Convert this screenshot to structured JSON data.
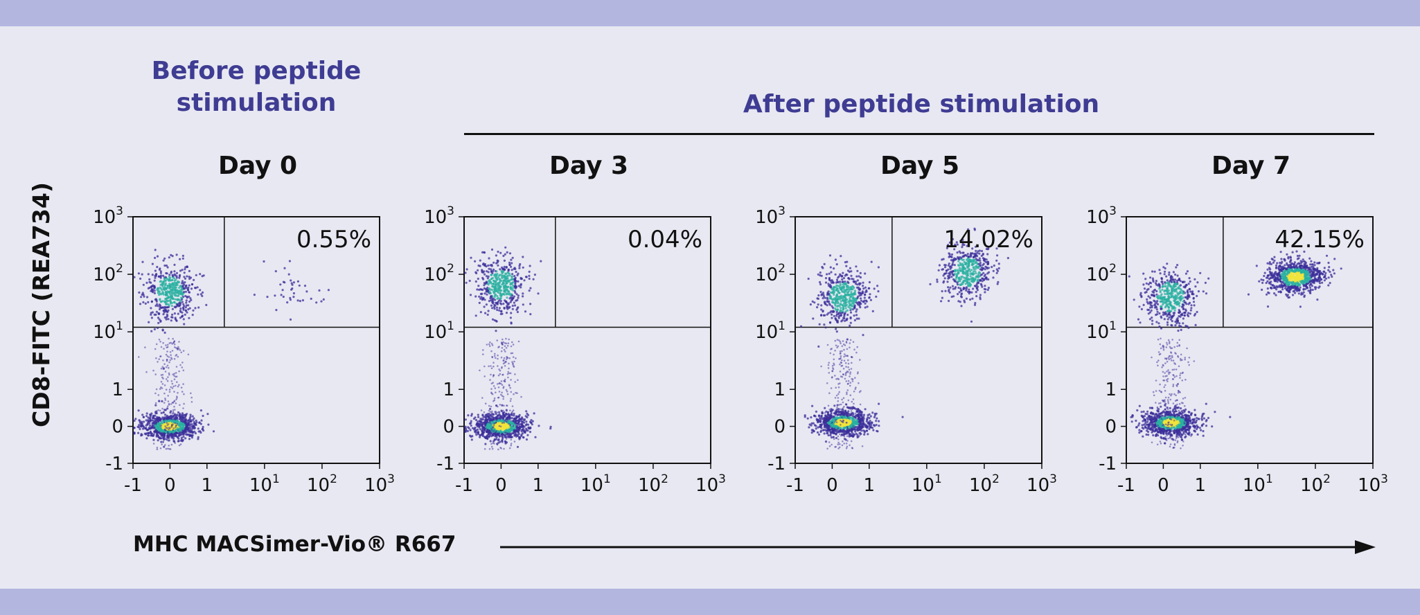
{
  "headers": {
    "before": "Before peptide stimulation",
    "after": "After peptide stimulation"
  },
  "y_axis_label": "CD8-FITC (REA734)",
  "x_axis_label": "MHC MACSimer-Vio® R667",
  "colors": {
    "band": "#b3b6df",
    "background": "#e8e8f2",
    "header": "#3f3c93",
    "density_low": "#3b2d9a",
    "density_mid": "#2ab0a0",
    "density_high": "#f2e43a"
  },
  "chart_data": [
    {
      "type": "scatter",
      "title": "Day 0",
      "x_ticks": [
        "-1",
        "0",
        "1",
        "10^1",
        "10^2",
        "10^3"
      ],
      "y_ticks": [
        "-1",
        "0",
        "1",
        "10^1",
        "10^2",
        "10^3"
      ],
      "xlim": [
        -1,
        1000
      ],
      "ylim": [
        -1,
        1000
      ],
      "scale": "biexponential",
      "gate": {
        "x": 2,
        "y": 12
      },
      "gate_percent": "0.55%",
      "populations": [
        {
          "x": 0,
          "y": 0,
          "density": "high"
        },
        {
          "x": 0,
          "y": 50,
          "density": "mid"
        },
        {
          "x": 30,
          "y": 50,
          "density": "sparse"
        }
      ]
    },
    {
      "type": "scatter",
      "title": "Day 3",
      "x_ticks": [
        "-1",
        "0",
        "1",
        "10^1",
        "10^2",
        "10^3"
      ],
      "y_ticks": [
        "-1",
        "0",
        "1",
        "10^1",
        "10^2",
        "10^3"
      ],
      "xlim": [
        -1,
        1000
      ],
      "ylim": [
        -1,
        1000
      ],
      "scale": "biexponential",
      "gate": {
        "x": 2,
        "y": 12
      },
      "gate_percent": "0.04%",
      "populations": [
        {
          "x": 0,
          "y": 0,
          "density": "high"
        },
        {
          "x": 0,
          "y": 65,
          "density": "mid"
        }
      ]
    },
    {
      "type": "scatter",
      "title": "Day 5",
      "x_ticks": [
        "-1",
        "0",
        "1",
        "10^1",
        "10^2",
        "10^3"
      ],
      "y_ticks": [
        "-1",
        "0",
        "1",
        "10^1",
        "10^2",
        "10^3"
      ],
      "xlim": [
        -1,
        1000
      ],
      "ylim": [
        -1,
        1000
      ],
      "scale": "biexponential",
      "gate": {
        "x": 2.5,
        "y": 12
      },
      "gate_percent": "14.02%",
      "populations": [
        {
          "x": 0.3,
          "y": 0.1,
          "density": "high"
        },
        {
          "x": 0.3,
          "y": 40,
          "density": "mid"
        },
        {
          "x": 50,
          "y": 110,
          "density": "mid"
        }
      ]
    },
    {
      "type": "scatter",
      "title": "Day 7",
      "x_ticks": [
        "-1",
        "0",
        "1",
        "10^1",
        "10^2",
        "10^3"
      ],
      "y_ticks": [
        "-1",
        "0",
        "1",
        "10^1",
        "10^2",
        "10^3"
      ],
      "xlim": [
        -1,
        1000
      ],
      "ylim": [
        -1,
        1000
      ],
      "scale": "biexponential",
      "gate": {
        "x": 2.5,
        "y": 12
      },
      "gate_percent": "42.15%",
      "populations": [
        {
          "x": 0.2,
          "y": 0.1,
          "density": "high"
        },
        {
          "x": 0.2,
          "y": 40,
          "density": "mid"
        },
        {
          "x": 45,
          "y": 90,
          "density": "high"
        }
      ]
    }
  ]
}
